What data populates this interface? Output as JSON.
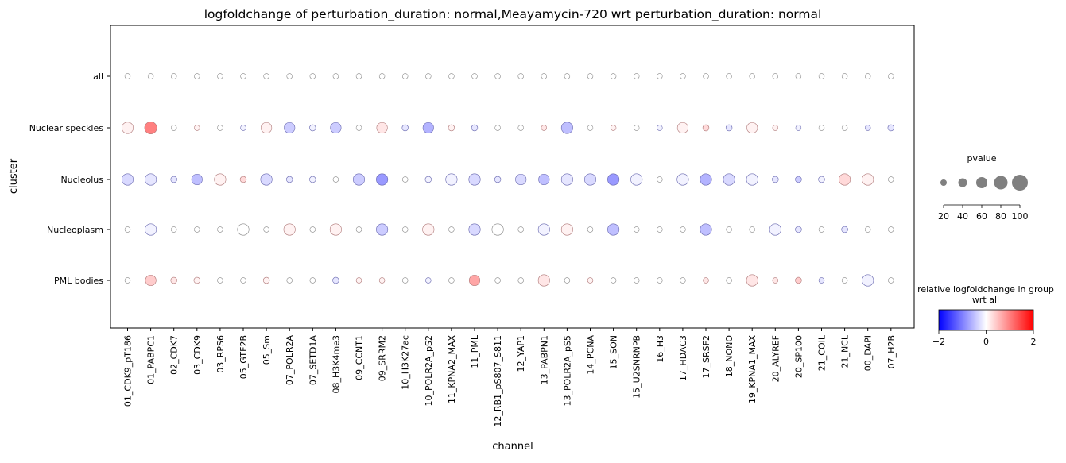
{
  "chart_data": {
    "type": "scatter",
    "title": "logfoldchange of perturbation_duration: normal,Meayamycin-720 wrt perturbation_duration: normal",
    "xlabel": "channel",
    "ylabel": "cluster",
    "categories": [
      "01_CDK9_pT186",
      "01_PABPC1",
      "02_CDK7",
      "03_CDK9",
      "03_RPS6",
      "05_GTF2B",
      "05_Sm",
      "07_POLR2A",
      "07_SETD1A",
      "08_H3K4me3",
      "09_CCNT1",
      "09_SRRM2",
      "10_H3K27ac",
      "10_POLR2A_pS2",
      "11_KPNA2_MAX",
      "11_PML",
      "12_RB1_pS807_S811",
      "12_YAP1",
      "13_PABPN1",
      "13_POLR2A_pS5",
      "14_PCNA",
      "15_SON",
      "15_U2SNRNPB",
      "16_H3",
      "17_HDAC3",
      "17_SRSF2",
      "18_NONO",
      "19_KPNA1_MAX",
      "20_ALYREF",
      "20_SP100",
      "21_COIL",
      "21_NCL",
      "00_DAPI",
      "07_H2B"
    ],
    "clusters": [
      "all",
      "Nuclear speckles",
      "Nucleolus",
      "Nucleoplasm",
      "PML bodies"
    ],
    "series": [
      {
        "cluster": "all",
        "logfoldchange": [
          0,
          0,
          0,
          0,
          0,
          0,
          0,
          0,
          0,
          0,
          0,
          0,
          0,
          0,
          0,
          0,
          0,
          0,
          0,
          0,
          0,
          0,
          0,
          0,
          0,
          0,
          0,
          0,
          0,
          0,
          0,
          0,
          0,
          0
        ],
        "pvalue": [
          15,
          15,
          15,
          15,
          15,
          15,
          15,
          15,
          15,
          15,
          15,
          15,
          15,
          15,
          15,
          15,
          15,
          15,
          15,
          15,
          15,
          15,
          15,
          15,
          15,
          15,
          15,
          15,
          15,
          15,
          15,
          15,
          15,
          15
        ]
      },
      {
        "cluster": "Nuclear speckles",
        "logfoldchange": [
          0.1,
          1.0,
          0,
          0.1,
          0,
          -0.1,
          0.1,
          -0.4,
          -0.1,
          -0.4,
          0,
          0.2,
          -0.2,
          -0.6,
          0.1,
          -0.2,
          0,
          0,
          0.2,
          -0.5,
          0,
          0.1,
          0,
          -0.1,
          0.1,
          0.3,
          -0.2,
          0.1,
          0.1,
          -0.1,
          0,
          0,
          -0.2,
          -0.2
        ],
        "pvalue": [
          55,
          60,
          15,
          15,
          15,
          15,
          50,
          50,
          20,
          50,
          15,
          50,
          20,
          50,
          20,
          20,
          15,
          15,
          15,
          55,
          15,
          15,
          15,
          15,
          50,
          20,
          20,
          50,
          15,
          15,
          15,
          15,
          15,
          20
        ]
      },
      {
        "cluster": "Nucleolus",
        "logfoldchange": [
          -0.3,
          -0.2,
          -0.2,
          -0.5,
          0.1,
          0.3,
          -0.3,
          -0.2,
          -0.1,
          0,
          -0.4,
          -0.8,
          0,
          -0.1,
          -0.1,
          -0.3,
          -0.2,
          -0.3,
          -0.5,
          -0.2,
          -0.3,
          -0.8,
          -0.1,
          0,
          -0.1,
          -0.6,
          -0.3,
          -0.1,
          -0.2,
          -0.4,
          -0.1,
          0.3,
          0.1,
          0
        ],
        "pvalue": [
          55,
          55,
          20,
          50,
          55,
          20,
          55,
          20,
          20,
          15,
          55,
          55,
          15,
          20,
          55,
          55,
          20,
          50,
          50,
          55,
          55,
          55,
          55,
          15,
          55,
          55,
          55,
          55,
          20,
          20,
          20,
          55,
          55,
          15
        ]
      },
      {
        "cluster": "Nucleoplasm",
        "logfoldchange": [
          0,
          -0.1,
          0,
          0,
          0,
          0,
          0,
          0.1,
          0,
          0.1,
          0,
          -0.4,
          0,
          0.1,
          0,
          -0.3,
          0,
          0,
          -0.1,
          0.1,
          0,
          -0.5,
          0,
          0,
          0,
          -0.5,
          0,
          0,
          -0.1,
          -0.2,
          0,
          -0.2,
          0,
          0
        ],
        "pvalue": [
          15,
          55,
          15,
          15,
          15,
          55,
          15,
          55,
          15,
          55,
          15,
          55,
          15,
          55,
          15,
          55,
          55,
          15,
          55,
          55,
          15,
          55,
          15,
          15,
          15,
          55,
          15,
          15,
          55,
          20,
          15,
          20,
          15,
          15
        ]
      },
      {
        "cluster": "PML bodies",
        "logfoldchange": [
          0,
          0.4,
          0.2,
          0.1,
          0,
          0,
          0.1,
          0,
          0,
          -0.2,
          0.1,
          0.1,
          0,
          -0.1,
          0,
          0.7,
          0,
          0,
          0.2,
          0,
          0.1,
          0,
          0,
          0,
          0,
          0.2,
          0,
          0.2,
          0.2,
          0.4,
          -0.2,
          0,
          -0.1,
          0
        ],
        "pvalue": [
          15,
          50,
          20,
          20,
          15,
          15,
          20,
          15,
          15,
          20,
          15,
          15,
          15,
          15,
          15,
          50,
          15,
          15,
          55,
          15,
          15,
          15,
          15,
          15,
          15,
          15,
          15,
          55,
          15,
          20,
          15,
          15,
          55,
          15
        ]
      }
    ],
    "size_legend": {
      "title": "pvalue",
      "values": [
        20,
        40,
        60,
        80,
        100
      ]
    },
    "colorbar": {
      "title_line1": "relative logfoldchange in group",
      "title_line2": "wrt all",
      "range": [
        -2,
        2
      ],
      "ticks": [
        "−2",
        "0",
        "2"
      ],
      "colors": {
        "low": "#0000ff",
        "mid": "#ffffff",
        "high": "#ff0000"
      }
    },
    "grid": false
  }
}
